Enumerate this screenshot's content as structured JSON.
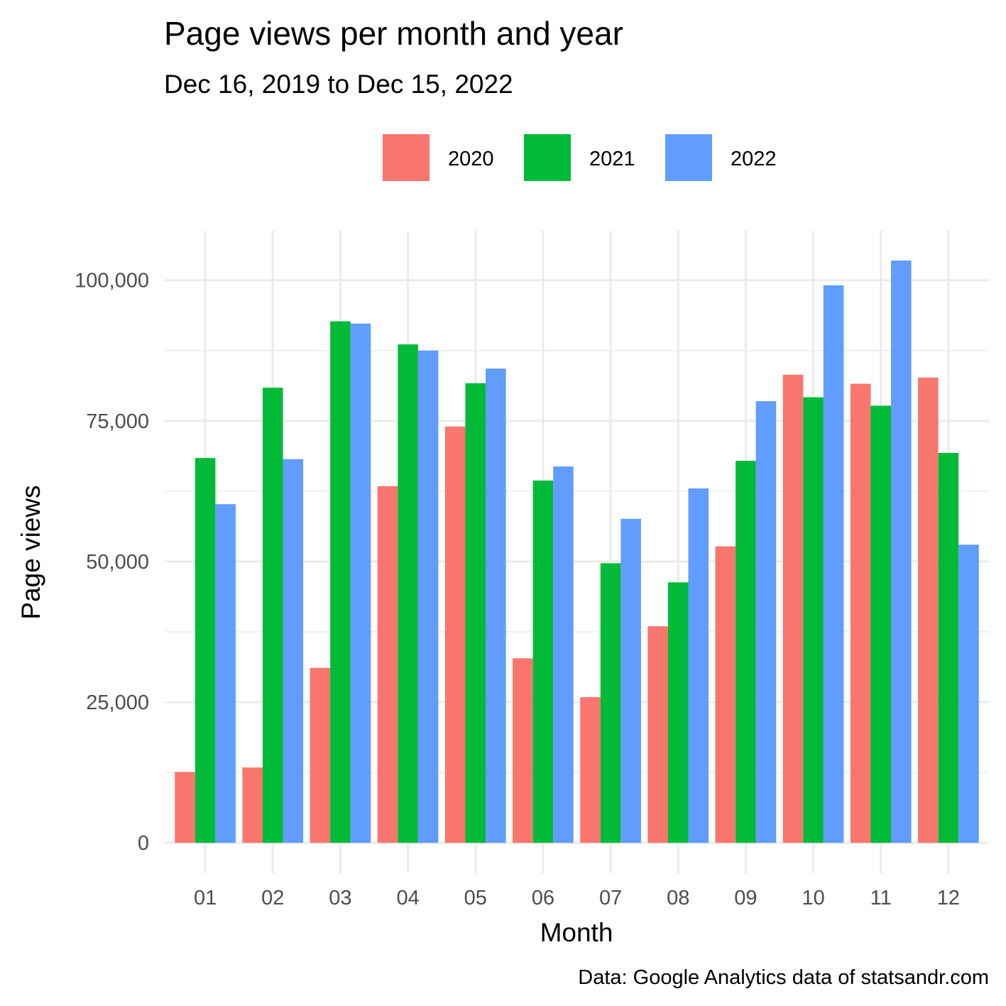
{
  "chart_data": {
    "type": "bar",
    "title": "Page views per month and year",
    "subtitle": "Dec 16, 2019 to Dec 15, 2022",
    "xlabel": "Month",
    "ylabel": "Page views",
    "caption": "Data: Google Analytics data of statsandr.com",
    "categories": [
      "01",
      "02",
      "03",
      "04",
      "05",
      "06",
      "07",
      "08",
      "09",
      "10",
      "11",
      "12"
    ],
    "series": [
      {
        "name": "2020",
        "color": "#F8766D",
        "values": [
          12600,
          13400,
          31100,
          63400,
          74000,
          32800,
          25900,
          38500,
          52700,
          83200,
          81600,
          82700
        ]
      },
      {
        "name": "2021",
        "color": "#00BA38",
        "values": [
          68400,
          80900,
          92700,
          88600,
          81700,
          64400,
          49700,
          46300,
          67900,
          79200,
          77700,
          69300
        ]
      },
      {
        "name": "2022",
        "color": "#619CFF",
        "values": [
          60200,
          68200,
          92300,
          87500,
          84300,
          66900,
          57600,
          63000,
          78500,
          99100,
          103500,
          53000
        ]
      }
    ],
    "yticks": [
      0,
      25000,
      50000,
      75000,
      100000
    ],
    "ytick_labels": [
      "0",
      "25,000",
      "50,000",
      "75,000",
      "100,000"
    ],
    "ylim": [
      -5400,
      108800
    ],
    "grid": true,
    "legend_position": "top",
    "bar_position": "dodge"
  }
}
